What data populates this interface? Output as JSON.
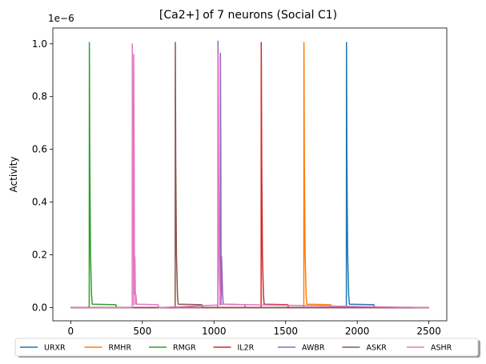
{
  "chart_data": {
    "type": "line",
    "title": "[Ca2+] of 7 neurons (Social C1)",
    "xlabel": "",
    "ylabel": "Activity",
    "scale_label": "1e−6",
    "xlim": [
      -125,
      2625
    ],
    "ylim": [
      -0.05,
      1.06
    ],
    "xticks": [
      0,
      500,
      1000,
      1500,
      2000,
      2500
    ],
    "xtick_labels": [
      "0",
      "500",
      "1000",
      "1500",
      "2000",
      "2500"
    ],
    "yticks": [
      0.0,
      0.2,
      0.4,
      0.6,
      0.8,
      1.0
    ],
    "ytick_labels": [
      "0.0",
      "0.2",
      "0.4",
      "0.6",
      "0.8",
      "1.0"
    ],
    "grid": false,
    "legend_placement": "below",
    "series": [
      {
        "name": "URXR",
        "color": "#1f77b4",
        "spikes": [
          {
            "t": 1925,
            "peak": 1.005
          }
        ],
        "plateau": [
          1945,
          2115
        ]
      },
      {
        "name": "RMHR",
        "color": "#ff7f0e",
        "spikes": [
          {
            "t": 1628,
            "peak": 1.005
          }
        ],
        "plateau": [
          1648,
          1815
        ]
      },
      {
        "name": "RMGR",
        "color": "#2ca02c",
        "spikes": [
          {
            "t": 130,
            "peak": 1.005
          }
        ],
        "plateau": [
          150,
          315
        ]
      },
      {
        "name": "IL2R",
        "color": "#d62728",
        "spikes": [
          {
            "t": 1330,
            "peak": 1.005
          }
        ],
        "plateau": [
          1350,
          1515
        ]
      },
      {
        "name": "AWBR",
        "color": "#9467bd",
        "spikes": [
          {
            "t": 1028,
            "peak": 1.01
          },
          {
            "t": 1045,
            "peak": 0.965
          }
        ],
        "plateau": [
          1065,
          1215
        ]
      },
      {
        "name": "ASKR",
        "color": "#8c564b",
        "spikes": [
          {
            "t": 730,
            "peak": 1.005
          }
        ],
        "plateau": [
          750,
          915
        ]
      },
      {
        "name": "ASHR",
        "color": "#e377c2",
        "spikes": [
          {
            "t": 430,
            "peak": 1.0
          },
          {
            "t": 440,
            "peak": 0.96
          },
          {
            "t": 1030,
            "peak": 0.96
          }
        ],
        "plateau": [
          460,
          610
        ]
      }
    ]
  }
}
